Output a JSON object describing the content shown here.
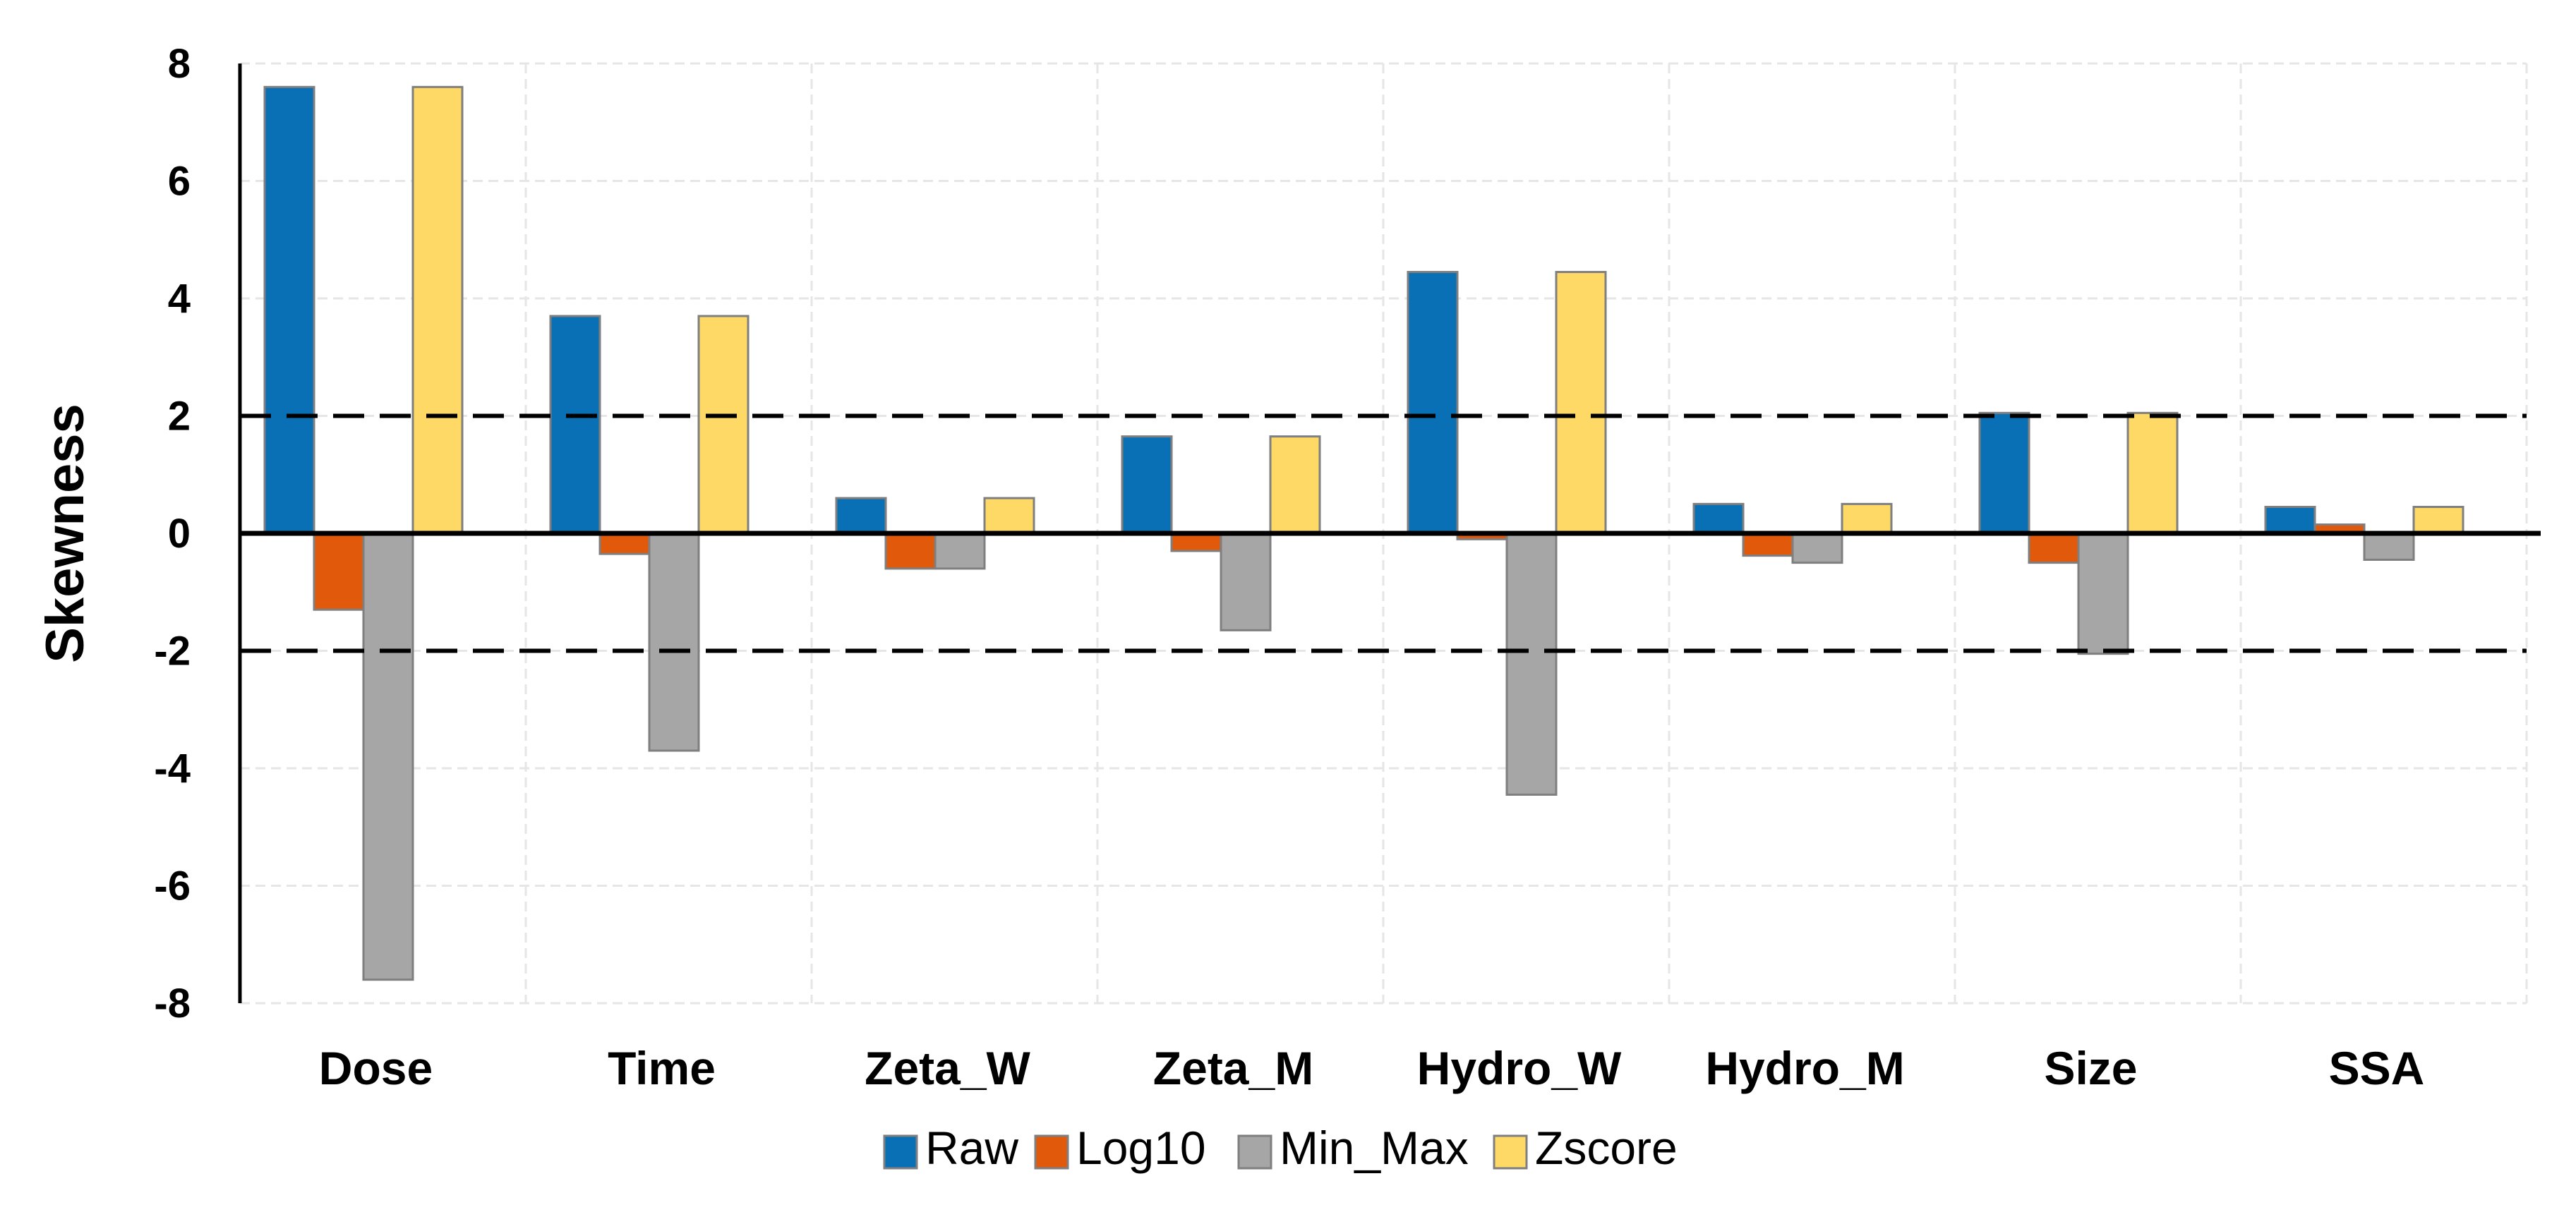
{
  "chart_data": {
    "type": "bar",
    "title": "",
    "xlabel": "",
    "ylabel": "Skewness",
    "ylim": [
      -8,
      8
    ],
    "yticks": [
      -8,
      -6,
      -4,
      -2,
      0,
      2,
      4,
      6,
      8
    ],
    "ytick_labels": [
      "-8",
      "-6",
      "-4",
      "-2",
      "0",
      "2",
      "4",
      "6",
      "8"
    ],
    "reference_lines": [
      2,
      -2
    ],
    "categories": [
      "Dose",
      "Time",
      "Zeta_W",
      "Zeta_M",
      "Hydro_W",
      "Hydro_M",
      "Size",
      "SSA"
    ],
    "series": [
      {
        "name": "Raw",
        "color": "#0A70B5",
        "values": [
          7.6,
          3.7,
          0.6,
          1.65,
          4.45,
          0.5,
          2.05,
          0.45
        ]
      },
      {
        "name": "Log10",
        "color": "#E15A0C",
        "values": [
          -1.3,
          -0.35,
          -0.6,
          -0.3,
          -0.1,
          -0.38,
          -0.5,
          0.15
        ]
      },
      {
        "name": "Min_Max",
        "color": "#A6A6A6",
        "values": [
          -7.6,
          -3.7,
          -0.6,
          -1.65,
          -4.45,
          -0.5,
          -2.05,
          -0.45
        ]
      },
      {
        "name": "Zscore",
        "color": "#FFD966",
        "values": [
          7.6,
          3.7,
          0.6,
          1.65,
          4.45,
          0.5,
          2.05,
          0.45
        ]
      }
    ],
    "legend_position": "bottom"
  }
}
